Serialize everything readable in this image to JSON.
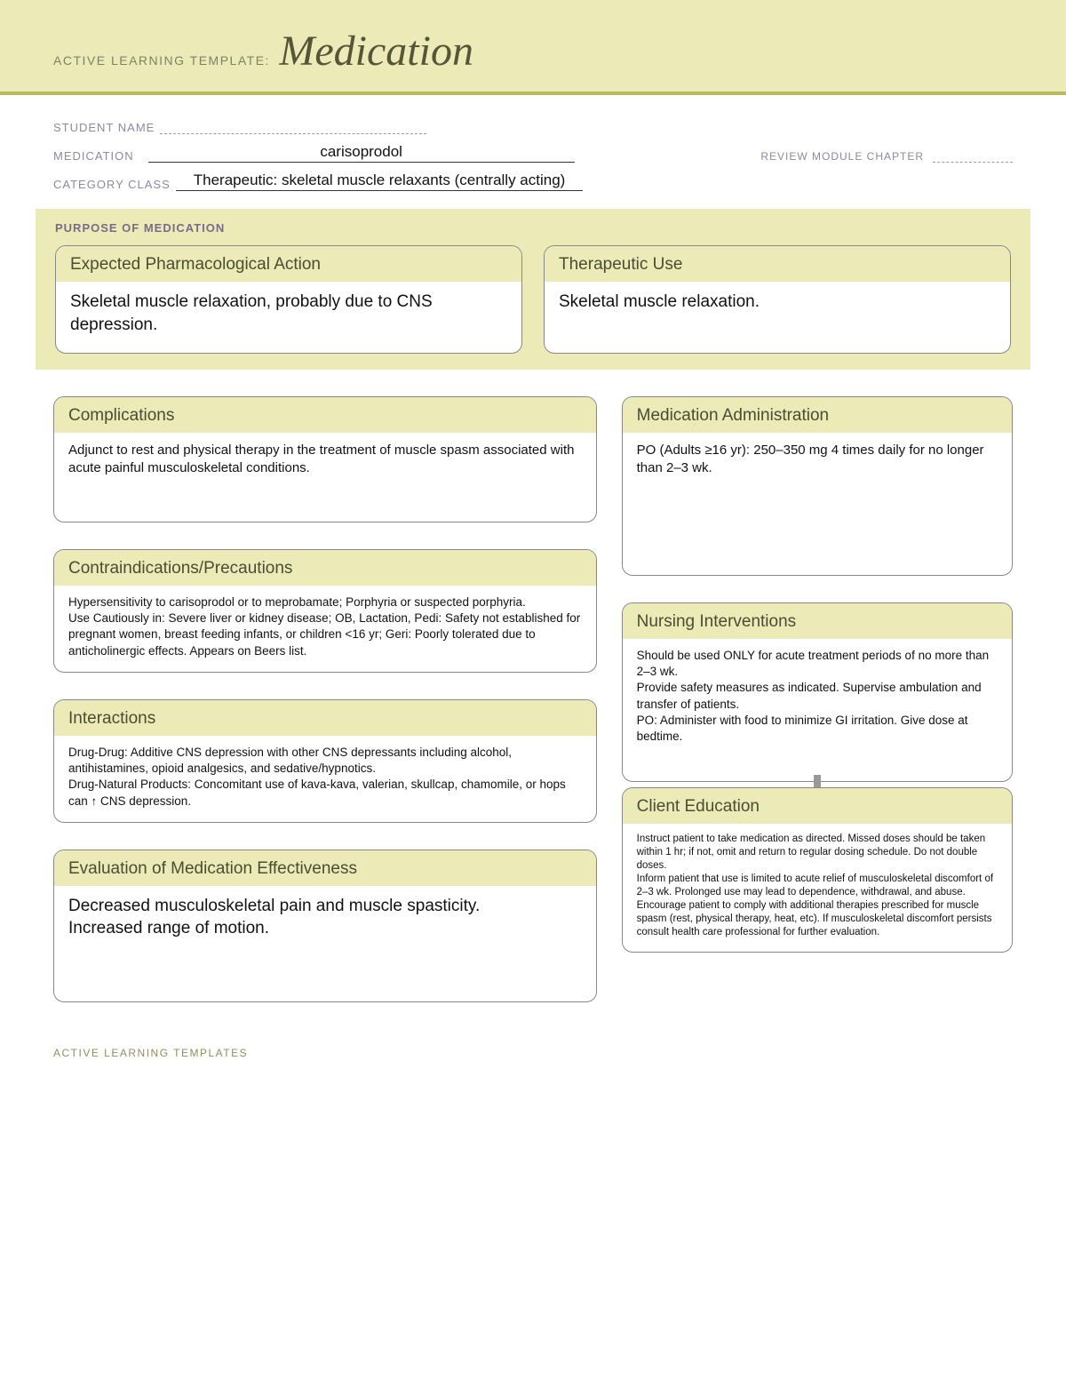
{
  "header": {
    "prefix": "ACTIVE LEARNING TEMPLATE:",
    "title": "Medication"
  },
  "meta": {
    "student_label": "STUDENT NAME",
    "medication_label": "MEDICATION",
    "medication_value": "carisoprodol",
    "review_label": "REVIEW MODULE CHAPTER",
    "category_label": "CATEGORY CLASS",
    "category_value": "Therapeutic: skeletal muscle relaxants (centrally acting)"
  },
  "purpose": {
    "section_title": "PURPOSE OF MEDICATION",
    "pharm_action": {
      "title": "Expected Pharmacological Action",
      "body": "Skeletal muscle relaxation, probably due to CNS depression."
    },
    "therapeutic_use": {
      "title": "Therapeutic Use",
      "body": "Skeletal muscle relaxation."
    }
  },
  "cards": {
    "complications": {
      "title": "Complications",
      "body": "Adjunct to rest and physical therapy in the treatment of muscle spasm associated with acute painful musculoskeletal conditions."
    },
    "contraindications": {
      "title": "Contraindications/Precautions",
      "body": "Hypersensitivity to carisoprodol or to meprobamate; Porphyria or suspected porphyria.\nUse Cautiously in: Severe liver or kidney disease; OB, Lactation, Pedi: Safety not established for pregnant women, breast feeding infants, or children <16 yr; Geri: Poorly tolerated due to anticholinergic effects. Appears on Beers list."
    },
    "interactions": {
      "title": "Interactions",
      "body": "Drug-Drug: Additive CNS depression with other CNS depressants including alcohol, antihistamines, opioid analgesics, and sedative/hypnotics.\nDrug-Natural Products: Concomitant use of kava-kava, valerian, skullcap, chamomile, or hops can  ↑  CNS depression."
    },
    "evaluation": {
      "title": "Evaluation of Medication Effectiveness",
      "body": "Decreased musculoskeletal pain and muscle spasticity.\nIncreased range of motion."
    },
    "administration": {
      "title": "Medication Administration",
      "body": "PO (Adults ≥16 yr): 250–350 mg 4 times daily for no longer than 2–3 wk."
    },
    "nursing": {
      "title": "Nursing Interventions",
      "body": "Should be used ONLY for acute treatment periods of no more than 2–3 wk.\nProvide safety measures as indicated. Supervise ambulation and transfer of patients.\nPO: Administer with food to minimize GI irritation. Give dose at bedtime."
    },
    "education": {
      "title": "Client Education",
      "body": "Instruct patient to take medication as directed. Missed doses should be taken within 1 hr; if not, omit and return to regular dosing schedule. Do not double doses.\nInform patient that use is limited to acute relief of musculoskeletal discomfort of 2–3 wk. Prolonged use may lead to dependence, withdrawal, and abuse. Encourage patient to comply with additional therapies prescribed for muscle spasm (rest, physical therapy, heat, etc). If musculoskeletal discomfort persists consult health care professional for further evaluation."
    }
  },
  "footer": "ACTIVE LEARNING TEMPLATES"
}
